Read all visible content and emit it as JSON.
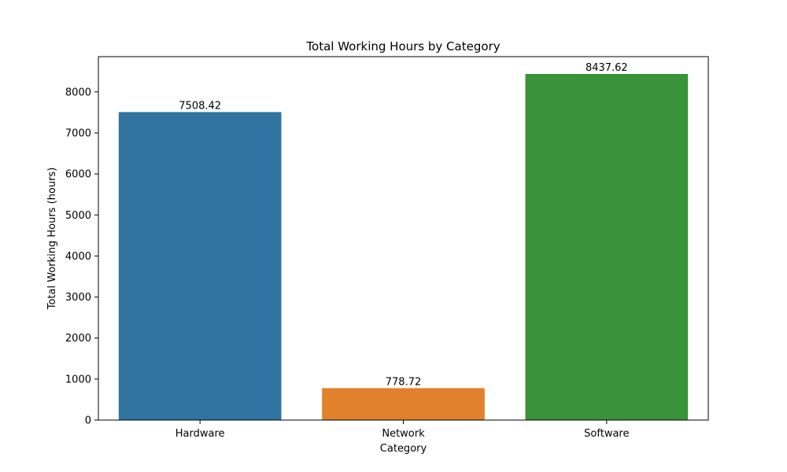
{
  "chart_data": {
    "type": "bar",
    "title": "Total Working Hours by Category",
    "xlabel": "Category",
    "ylabel": "Total Working Hours (hours)",
    "categories": [
      "Hardware",
      "Network",
      "Software"
    ],
    "values": [
      7508.42,
      778.72,
      8437.62
    ],
    "data_labels": [
      "7508.42",
      "778.72",
      "8437.62"
    ],
    "colors": [
      "#3274a1",
      "#e1812c",
      "#3a923a"
    ],
    "ylim": [
      0,
      8859.5
    ],
    "yticks": [
      0,
      1000,
      2000,
      3000,
      4000,
      5000,
      6000,
      7000,
      8000
    ],
    "grid": false,
    "legend": "none"
  }
}
